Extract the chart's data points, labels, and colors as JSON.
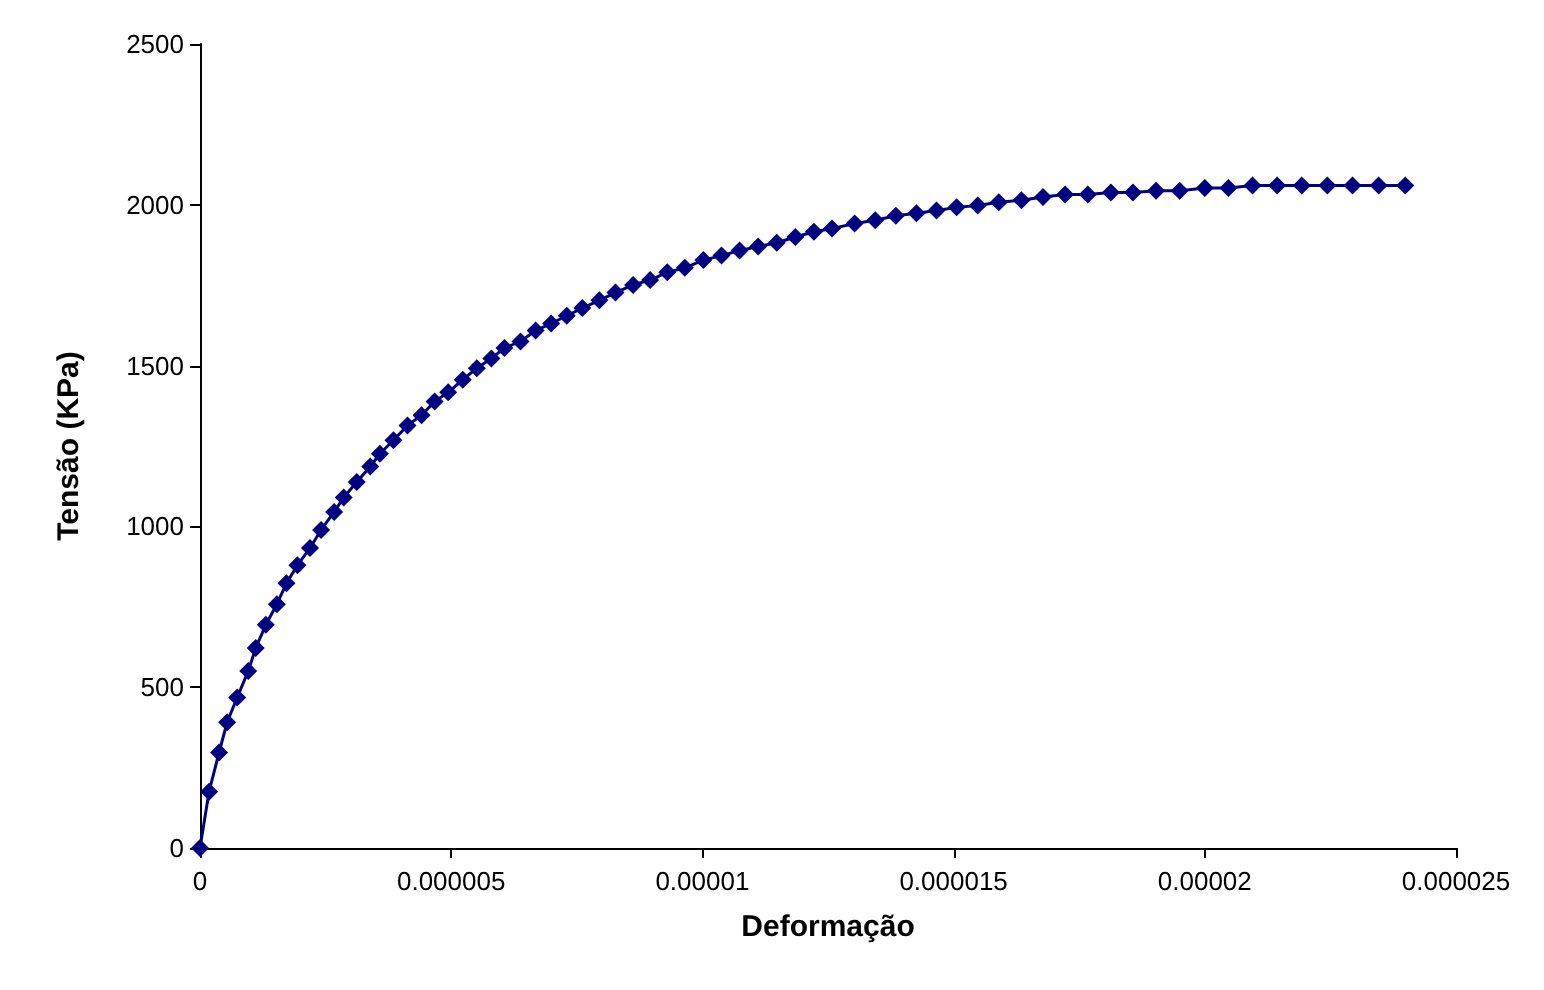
{
  "chart_data": {
    "type": "line",
    "xlabel": "Deformação",
    "ylabel": "Tensão (KPa)",
    "x": [
      0,
      1.8e-07,
      3.8e-07,
      5.4e-07,
      7.4e-07,
      9.6e-07,
      1.11e-06,
      1.31e-06,
      1.53e-06,
      1.72e-06,
      1.94e-06,
      2.19e-06,
      2.41e-06,
      2.67e-06,
      2.86e-06,
      3.12e-06,
      3.39e-06,
      3.58e-06,
      3.85e-06,
      4.13e-06,
      4.41e-06,
      4.67e-06,
      4.94e-06,
      5.23e-06,
      5.51e-06,
      5.8e-06,
      6.06e-06,
      6.38e-06,
      6.68e-06,
      6.99e-06,
      7.3e-06,
      7.61e-06,
      7.95e-06,
      8.27e-06,
      8.62e-06,
      8.96e-06,
      9.3e-06,
      9.65e-06,
      1.002e-05,
      1.038e-05,
      1.074e-05,
      1.111e-05,
      1.148e-05,
      1.185e-05,
      1.222e-05,
      1.258e-05,
      1.303e-05,
      1.344e-05,
      1.385e-05,
      1.426e-05,
      1.466e-05,
      1.506e-05,
      1.548e-05,
      1.59e-05,
      1.635e-05,
      1.678e-05,
      1.722e-05,
      1.767e-05,
      1.813e-05,
      1.857e-05,
      1.903e-05,
      1.95e-05,
      2e-05,
      2.047e-05,
      2.095e-05,
      2.144e-05,
      2.193e-05,
      2.244e-05,
      2.294e-05,
      2.346e-05,
      2.399e-05
    ],
    "series": [
      {
        "color": "#000080",
        "values": [
          0,
          175,
          297,
          391,
          468,
          550,
          622,
          694,
          758,
          823,
          879,
          933,
          989,
          1045,
          1090,
          1138,
          1186,
          1226,
          1268,
          1314,
          1346,
          1388,
          1417,
          1456,
          1492,
          1522,
          1555,
          1575,
          1609,
          1631,
          1655,
          1679,
          1703,
          1727,
          1751,
          1766,
          1790,
          1804,
          1828,
          1842,
          1858,
          1870,
          1882,
          1900,
          1916,
          1926,
          1942,
          1952,
          1966,
          1974,
          1982,
          1992,
          1998,
          2008,
          2014,
          2024,
          2032,
          2032,
          2038,
          2038,
          2044,
          2044,
          2052,
          2052,
          2060,
          2060,
          2060,
          2060,
          2060,
          2060,
          2060
        ]
      }
    ],
    "xlim": [
      0,
      2.5e-05
    ],
    "xticks": [
      0,
      {
        "value": 5e-06,
        "label": "0.000005"
      },
      {
        "value": 1e-05,
        "label": "0.00001"
      },
      {
        "value": 1.5e-05,
        "label": "0.000015"
      },
      {
        "value": 2e-05,
        "label": "0.00002"
      },
      {
        "value": 2.5e-05,
        "label": "0.000025"
      }
    ],
    "ylim": [
      0,
      2500
    ],
    "yticks": [
      0,
      500,
      1000,
      1500,
      2000,
      2500
    ],
    "grid": false,
    "marker": "diamond",
    "line_style": "solid"
  }
}
